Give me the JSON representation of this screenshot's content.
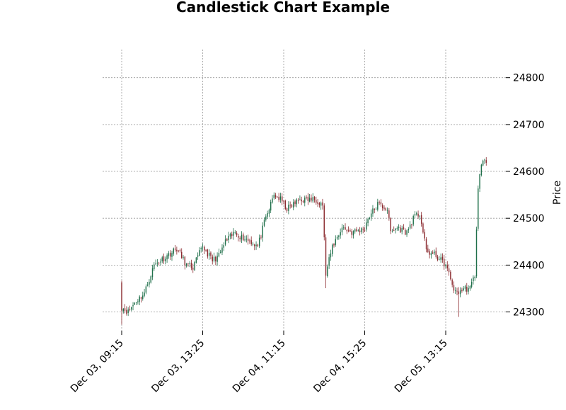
{
  "chart_data": {
    "type": "candlestick",
    "title": "Candlestick Chart Example",
    "ylabel": "Price",
    "xlabel": "",
    "ylim": [
      24260,
      24860
    ],
    "grid": true,
    "colors": {
      "up": "#1f6f4a",
      "down": "#8b2a2f",
      "grid": "#999999"
    },
    "x_tick_labels": [
      "Dec 03, 09:15",
      "Dec 03, 13:25",
      "Dec 04, 11:15",
      "Dec 04, 15:25",
      "Dec 05, 13:15"
    ],
    "x_tick_index": [
      0,
      50,
      100,
      150,
      200
    ],
    "y_ticks": [
      24300,
      24400,
      24500,
      24600,
      24700,
      24800
    ],
    "n_candles": 226,
    "close_anchors": [
      [
        0,
        24310
      ],
      [
        4,
        24300
      ],
      [
        8,
        24320
      ],
      [
        14,
        24340
      ],
      [
        20,
        24400
      ],
      [
        28,
        24420
      ],
      [
        34,
        24435
      ],
      [
        40,
        24400
      ],
      [
        44,
        24395
      ],
      [
        50,
        24440
      ],
      [
        56,
        24410
      ],
      [
        60,
        24420
      ],
      [
        64,
        24450
      ],
      [
        70,
        24470
      ],
      [
        74,
        24460
      ],
      [
        80,
        24450
      ],
      [
        84,
        24440
      ],
      [
        88,
        24490
      ],
      [
        94,
        24550
      ],
      [
        98,
        24540
      ],
      [
        102,
        24520
      ],
      [
        110,
        24540
      ],
      [
        120,
        24540
      ],
      [
        124,
        24530
      ],
      [
        126,
        24380
      ],
      [
        130,
        24440
      ],
      [
        136,
        24480
      ],
      [
        142,
        24470
      ],
      [
        148,
        24475
      ],
      [
        150,
        24480
      ],
      [
        152,
        24500
      ],
      [
        158,
        24530
      ],
      [
        164,
        24520
      ],
      [
        166,
        24470
      ],
      [
        170,
        24480
      ],
      [
        176,
        24470
      ],
      [
        180,
        24500
      ],
      [
        184,
        24510
      ],
      [
        188,
        24430
      ],
      [
        194,
        24420
      ],
      [
        200,
        24400
      ],
      [
        206,
        24340
      ],
      [
        212,
        24350
      ],
      [
        215,
        24350
      ],
      [
        218,
        24380
      ],
      [
        219,
        24480
      ],
      [
        220,
        24560
      ],
      [
        222,
        24620
      ],
      [
        226,
        24620
      ]
    ]
  }
}
